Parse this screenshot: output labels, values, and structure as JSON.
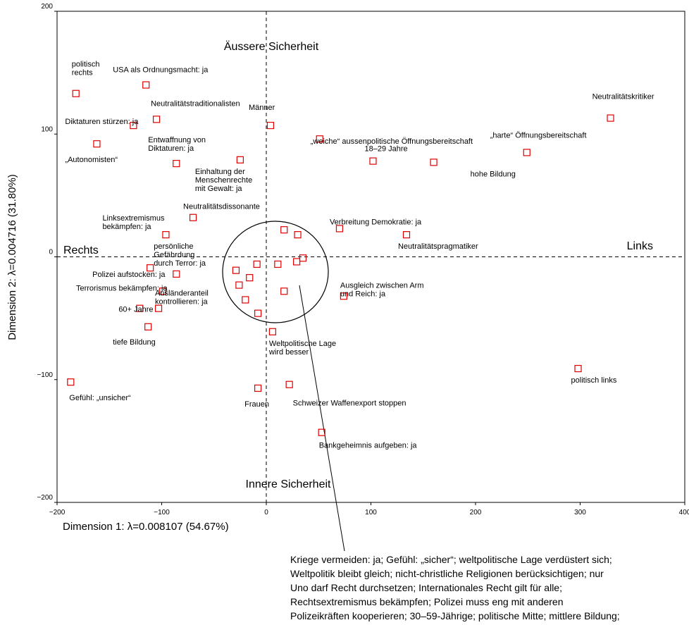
{
  "chart_data": {
    "type": "scatter",
    "xlabel": "Dimension 1: λ=0.008107 (54.67%)",
    "ylabel": "Dimension 2: λ=0.004716 (31.80%)",
    "xlim": [
      -200,
      400
    ],
    "ylim": [
      -200,
      200
    ],
    "xticks": [
      -200,
      -100,
      0,
      100,
      200,
      300,
      400
    ],
    "yticks": [
      200,
      100,
      0,
      -100,
      -200
    ],
    "grid": false,
    "marker": "open-square",
    "marker_color": "#e00000",
    "quadrant_labels": {
      "top": "Äussere Sicherheit",
      "bottom": "Innere Sicherheit",
      "left": "Rechts",
      "right": "Links"
    },
    "points": [
      {
        "label": "politisch\nrechts",
        "x": -182,
        "y": 133
      },
      {
        "label": "USA als Ordnungsmacht: ja",
        "x": -115,
        "y": 140
      },
      {
        "label": "Neutralitätstraditionalisten",
        "x": -105,
        "y": 112
      },
      {
        "label": "Diktaturen stürzen: ja",
        "x": -127,
        "y": 107
      },
      {
        "label": "„Autonomisten“",
        "x": -162,
        "y": 92
      },
      {
        "label": "Entwaffnung von\nDiktaturen: ja",
        "x": -86,
        "y": 76
      },
      {
        "label": "Einhaltung der\nMenschenrechte\nmit Gewalt: ja",
        "x": -25,
        "y": 79
      },
      {
        "label": "Männer",
        "x": 4,
        "y": 107
      },
      {
        "label": "„weiche“ aussenpolitische Öffnungsbereitschaft",
        "x": 51,
        "y": 96
      },
      {
        "label": "Neutralitätskritiker",
        "x": 329,
        "y": 113
      },
      {
        "label": "„harte“ Öffnungsbereitschaft",
        "x": 249,
        "y": 85
      },
      {
        "label": "18–29 Jahre",
        "x": 102,
        "y": 78
      },
      {
        "label": "hohe Bildung",
        "x": 160,
        "y": 77
      },
      {
        "label": "Neutralitätsdissonante",
        "x": -70,
        "y": 32
      },
      {
        "label": "Linksextremismus\nbekämpfen: ja",
        "x": -96,
        "y": 18
      },
      {
        "label": "Verbreitung Demokratie: ja",
        "x": 70,
        "y": 23
      },
      {
        "label": "Neutralitätspragmatiker",
        "x": 134,
        "y": 18
      },
      {
        "label": "persönliche\nGefährdung\ndurch Terror: ja",
        "x": -86,
        "y": -14
      },
      {
        "label": "Polizei aufstocken: ja",
        "x": -111,
        "y": -9
      },
      {
        "label": "Terrorismus bekämpfen: ja",
        "x": -99,
        "y": -28
      },
      {
        "label": "Ausländeranteil\nkontrollieren: ja",
        "x": -103,
        "y": -42
      },
      {
        "label": "60+ Jahre",
        "x": -121,
        "y": -42
      },
      {
        "label": "tiefe Bildung",
        "x": -113,
        "y": -57
      },
      {
        "label": "Ausgleich zwischen Arm\nund Reich: ja",
        "x": 74,
        "y": -32
      },
      {
        "label": "Weltpolitische Lage\nwird besser",
        "x": 6,
        "y": -61
      },
      {
        "label": "Gefühl: „unsicher“",
        "x": -187,
        "y": -102
      },
      {
        "label": "Frauen",
        "x": -8,
        "y": -107
      },
      {
        "label": "Schweizer Waffenexport stoppen",
        "x": 22,
        "y": -104
      },
      {
        "label": "politisch links",
        "x": 298,
        "y": -91
      },
      {
        "label": "Bankgeheimnis aufgeben: ja",
        "x": 53,
        "y": -143
      },
      {
        "label": "",
        "x": 17,
        "y": 22
      },
      {
        "label": "",
        "x": 30,
        "y": 18
      },
      {
        "label": "",
        "x": 35,
        "y": -1
      },
      {
        "label": "",
        "x": 29,
        "y": -4
      },
      {
        "label": "",
        "x": 11,
        "y": -6
      },
      {
        "label": "",
        "x": -9,
        "y": -6
      },
      {
        "label": "",
        "x": -29,
        "y": -11
      },
      {
        "label": "",
        "x": -26,
        "y": -23
      },
      {
        "label": "",
        "x": -16,
        "y": -17
      },
      {
        "label": "",
        "x": -20,
        "y": -35
      },
      {
        "label": "",
        "x": 17,
        "y": -28
      },
      {
        "label": "",
        "x": -8,
        "y": -46
      }
    ],
    "cluster_note": [
      "Kriege vermeiden: ja; Gefühl: „sicher“; weltpolitische Lage verdüstert sich;",
      "Weltpolitik bleibt gleich; nicht-christliche Religionen berücksichtigen; nur",
      "Uno darf Recht durchsetzen; Internationales Recht gilt für alle;",
      "Rechtsextremismus bekämpfen; Polizei muss eng mit anderen",
      "Polizeikräften kooperieren; 30–59-Jährige; politische Mitte; mittlere Bildung;"
    ]
  }
}
